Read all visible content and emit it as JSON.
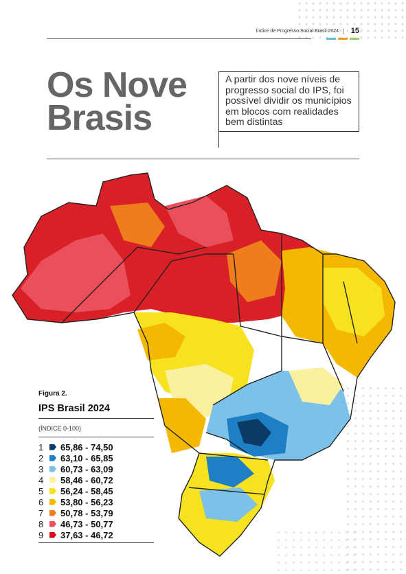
{
  "header": {
    "running_title": "Índice de Progresso Social Brasil 2024",
    "separator": "|",
    "page_number": "15",
    "accent_colors": [
      "#5bc0de",
      "#f0a020",
      "#9ccc65"
    ]
  },
  "title": {
    "line1": "Os Nove",
    "line2": "Brasis"
  },
  "intro": "A partir dos nove níveis de progresso social do IPS, foi possível dividir os municípios em blocos com realidades bem distintas",
  "figure": {
    "label": "Figura 2.",
    "title": "IPS Brasil 2024",
    "unit": "(ÍNDICE 0-100)",
    "legend": [
      {
        "num": "1",
        "range": "65,86 - 74,50",
        "color": "#0b3a66"
      },
      {
        "num": "2",
        "range": "63,10 - 65,85",
        "color": "#1e7fc4"
      },
      {
        "num": "3",
        "range": "60,73 - 63,09",
        "color": "#7cc1e8"
      },
      {
        "num": "4",
        "range": "58,46 - 60,72",
        "color": "#fbf0a0"
      },
      {
        "num": "5",
        "range": "56,24 - 58,45",
        "color": "#f6e220"
      },
      {
        "num": "6",
        "range": "53,80 - 56,23",
        "color": "#f5b800"
      },
      {
        "num": "7",
        "range": "50,78 - 53,79",
        "color": "#ee7d1c"
      },
      {
        "num": "8",
        "range": "46,73 - 50,77",
        "color": "#e9505c"
      },
      {
        "num": "9",
        "range": "37,63 - 46,72",
        "color": "#d3131b"
      }
    ]
  }
}
